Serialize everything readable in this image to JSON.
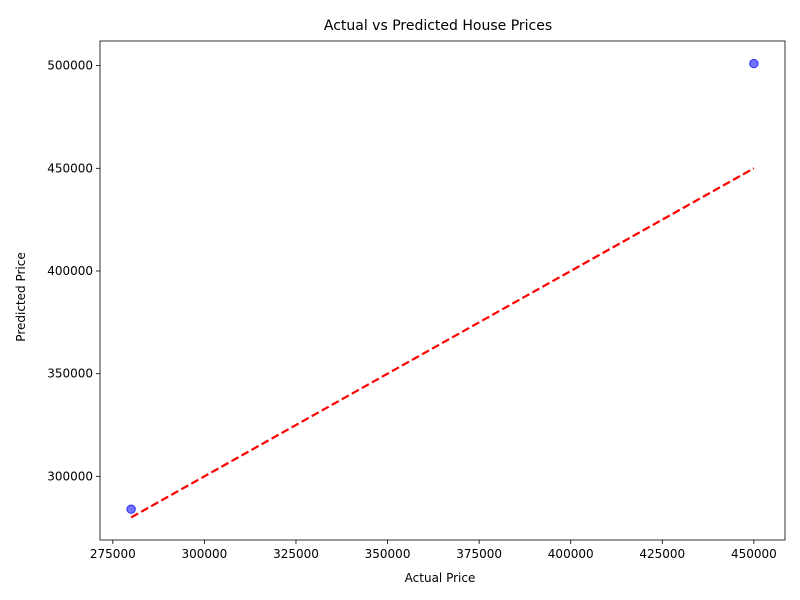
{
  "chart_data": {
    "type": "scatter",
    "title": "Actual vs Predicted House Prices",
    "xlabel": "Actual Price",
    "ylabel": "Predicted Price",
    "xlim": [
      271500,
      458500
    ],
    "ylim": [
      269000,
      512000
    ],
    "xticks": [
      275000,
      300000,
      325000,
      350000,
      375000,
      400000,
      425000,
      450000
    ],
    "yticks": [
      300000,
      350000,
      400000,
      450000,
      500000
    ],
    "points": [
      {
        "x": 280000,
        "y": 284000
      },
      {
        "x": 450000,
        "y": 501000
      }
    ],
    "reference_line": {
      "from": [
        280000,
        280000
      ],
      "to": [
        450000,
        450000
      ],
      "style": "dashed",
      "color": "#ff0000"
    },
    "point_color": "#0000ff",
    "point_alpha": 0.55,
    "grid": false,
    "legend": "none"
  }
}
